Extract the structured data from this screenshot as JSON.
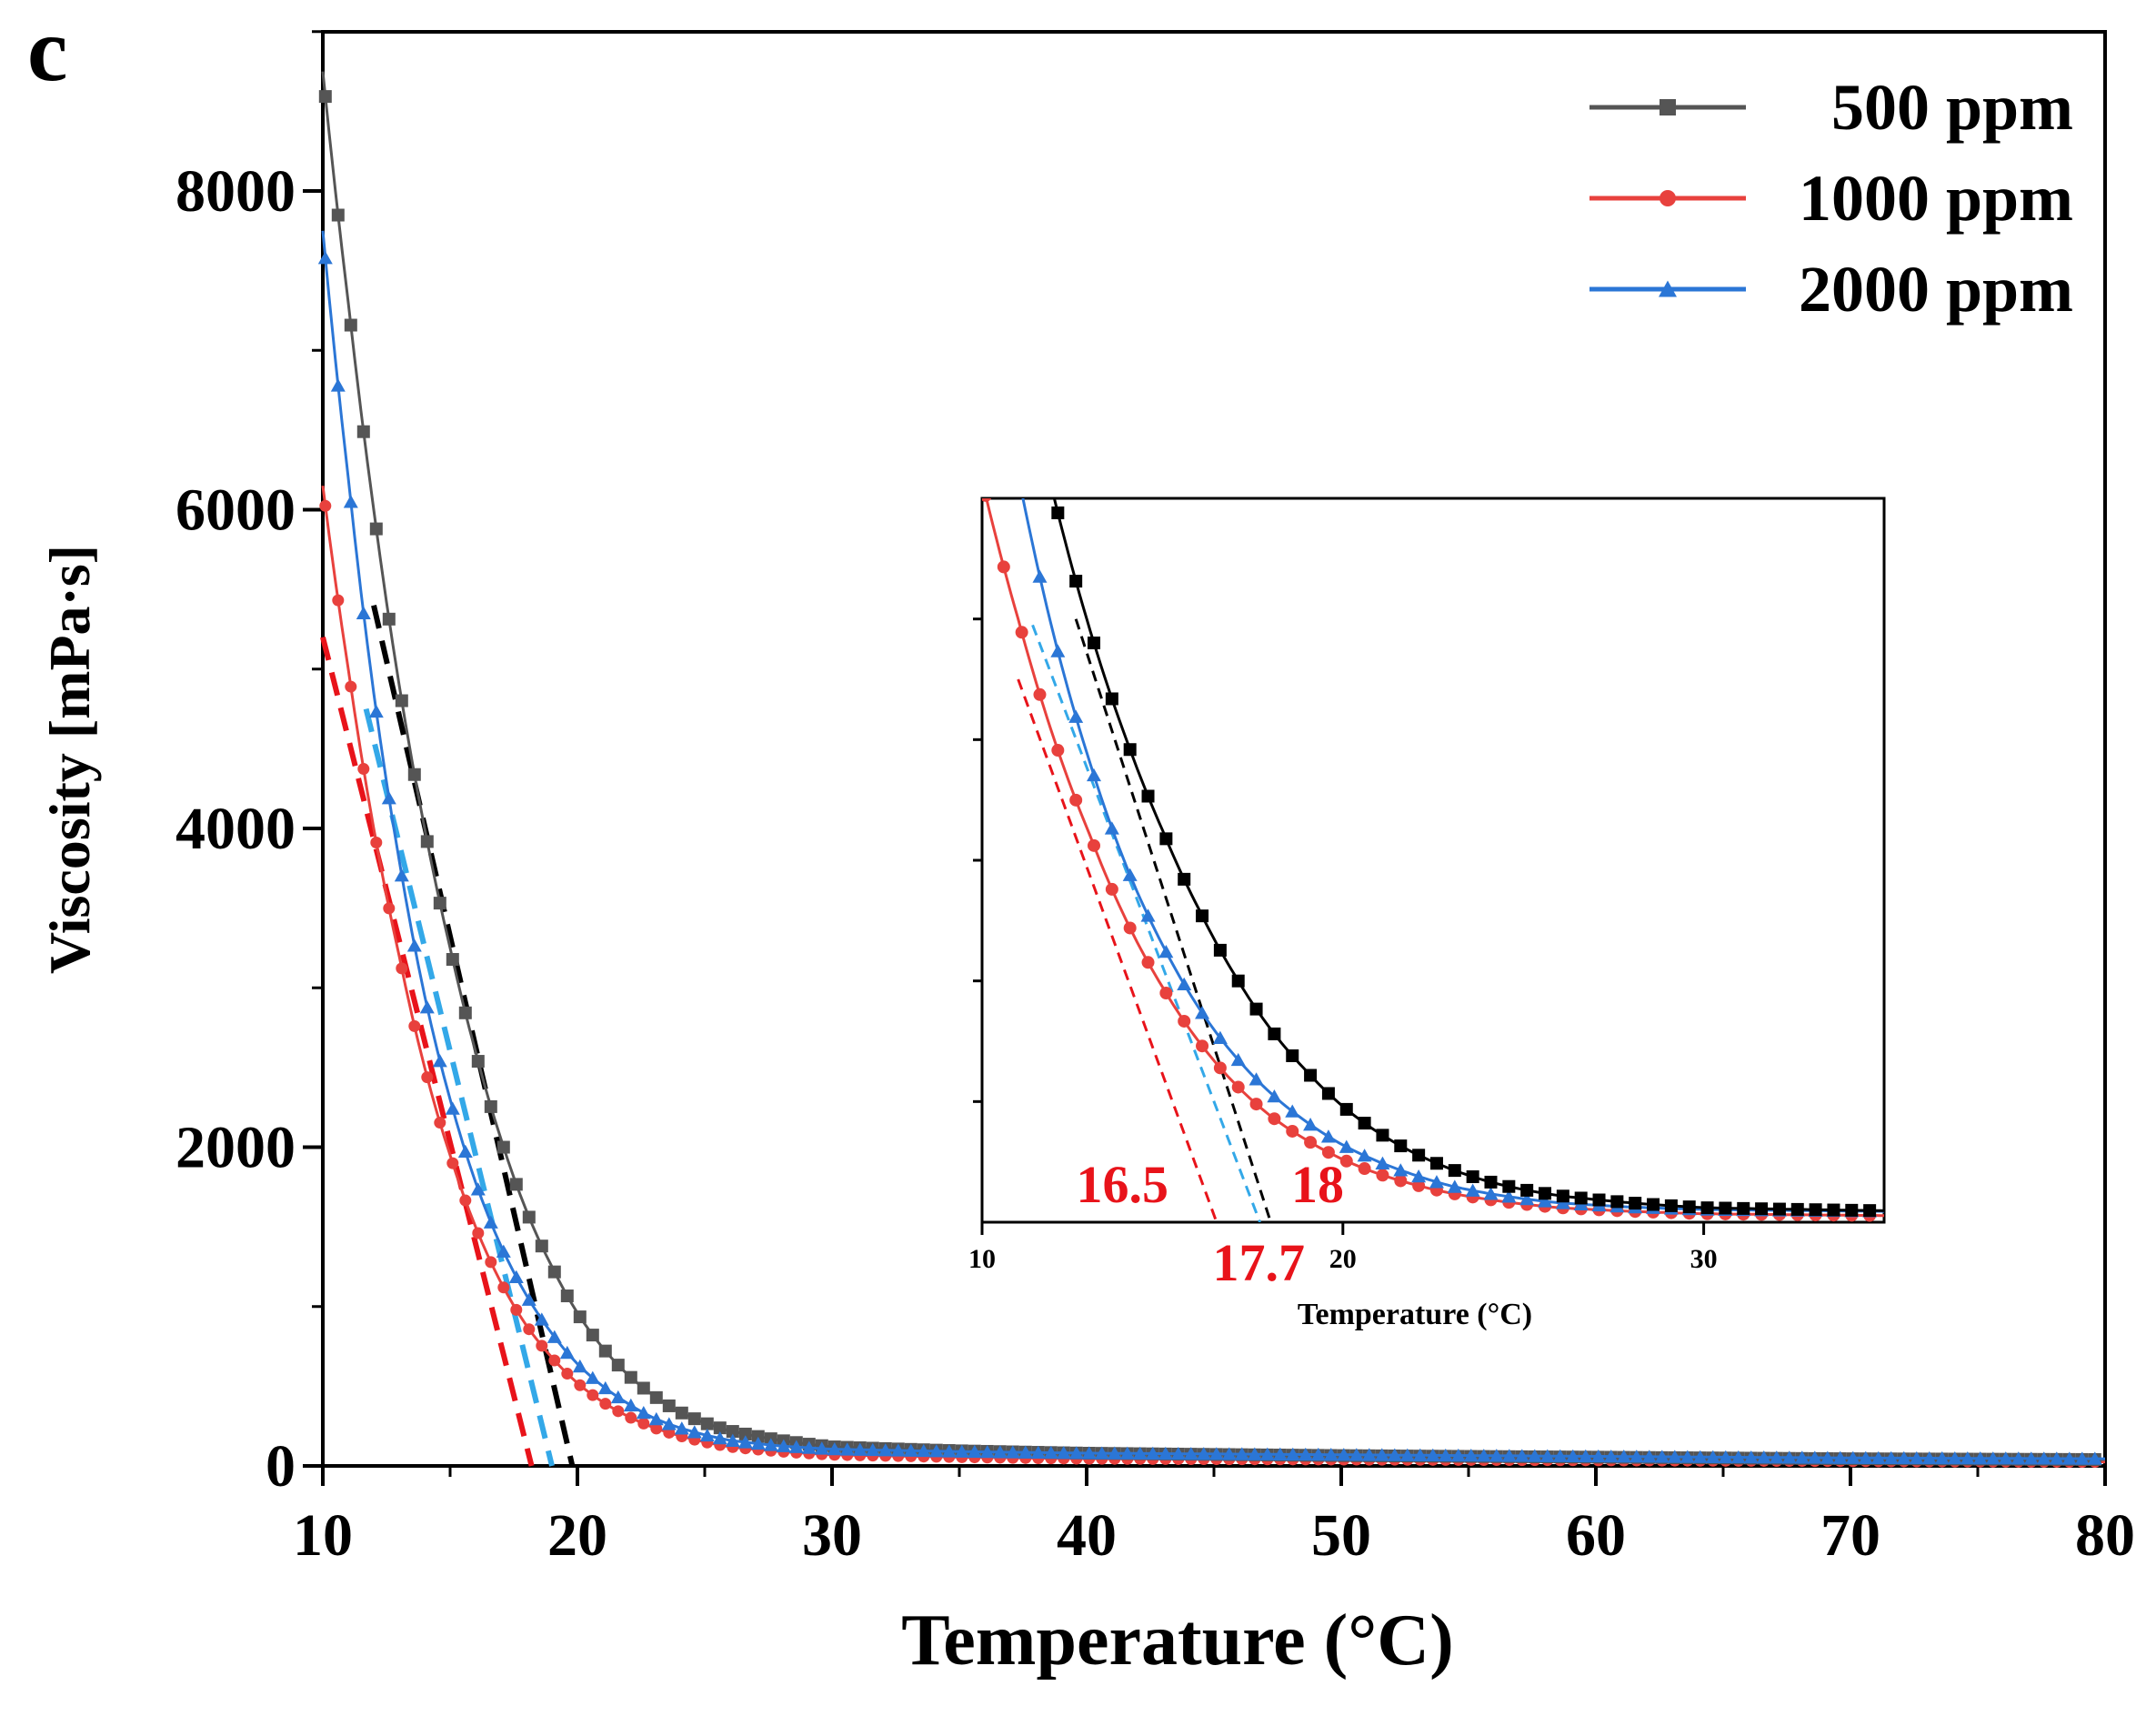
{
  "panel_label": "c",
  "chart_data": {
    "type": "line",
    "title": "",
    "xlabel": "Temperature (°C)",
    "ylabel": "Viscosity [mPa·s]",
    "xlim": [
      10,
      80
    ],
    "ylim": [
      0,
      9000
    ],
    "x_ticks": [
      10,
      20,
      30,
      40,
      50,
      60,
      70,
      80
    ],
    "x_tick_labels": [
      "10",
      "20",
      "30",
      "40",
      "50",
      "60",
      "70",
      "80"
    ],
    "y_ticks": [
      0,
      2000,
      4000,
      6000,
      8000
    ],
    "y_tick_labels": [
      "0",
      "2000",
      "4000",
      "6000",
      "8000"
    ],
    "grid": false,
    "legend_position": "top-right",
    "series": [
      {
        "name": "500 ppm",
        "color": "#555555",
        "marker": "square",
        "x": [
          10,
          11,
          12,
          13,
          14,
          15,
          16,
          17,
          18,
          19,
          20,
          21,
          22,
          23,
          24,
          25,
          26,
          28,
          30,
          35,
          40,
          50,
          60,
          70,
          80
        ],
        "values": [
          8750,
          7300,
          6000,
          4900,
          4000,
          3250,
          2600,
          2050,
          1600,
          1250,
          960,
          740,
          570,
          440,
          340,
          270,
          220,
          160,
          120,
          95,
          80,
          65,
          55,
          45,
          40
        ],
        "tangent": {
          "from": [
            12,
            5400
          ],
          "to": [
            19.8,
            0
          ]
        }
      },
      {
        "name": "1000 ppm",
        "color": "#e8413d",
        "marker": "circle",
        "x": [
          10,
          11,
          12,
          13,
          14,
          15,
          16,
          17,
          18,
          19,
          20,
          21,
          22,
          23,
          24,
          25,
          26,
          28,
          30,
          35,
          40,
          50,
          60,
          70,
          80
        ],
        "values": [
          6150,
          5000,
          4000,
          3200,
          2500,
          1950,
          1500,
          1150,
          880,
          680,
          520,
          400,
          310,
          240,
          190,
          150,
          120,
          90,
          70,
          55,
          45,
          40,
          35,
          30,
          25
        ],
        "tangent": {
          "from": [
            10,
            5200
          ],
          "to": [
            18.2,
            0
          ]
        }
      },
      {
        "name": "2000 ppm",
        "color": "#2b76d6",
        "marker": "triangle",
        "x": [
          10,
          11,
          12,
          13,
          14,
          15,
          16,
          17,
          18,
          19,
          20,
          21,
          22,
          23,
          24,
          25,
          26,
          28,
          30,
          35,
          40,
          50,
          60,
          70,
          80
        ],
        "values": [
          7750,
          6200,
          4850,
          3800,
          2950,
          2300,
          1780,
          1380,
          1070,
          830,
          640,
          500,
          390,
          300,
          240,
          195,
          160,
          125,
          105,
          90,
          80,
          70,
          60,
          50,
          45
        ],
        "tangent": {
          "from": [
            11.7,
            4750
          ],
          "to": [
            19,
            0
          ]
        }
      }
    ],
    "inset": {
      "xlabel": "Temperature (°C)",
      "xlim": [
        10,
        35
      ],
      "ylim": [
        0,
        6000
      ],
      "x_ticks": [
        10,
        20,
        30
      ],
      "x_tick_labels": [
        "10",
        "20",
        "30"
      ],
      "annotations": [
        {
          "text": "16.5",
          "color": "#e8131a"
        },
        {
          "text": "17.7",
          "color": "#e8131a"
        },
        {
          "text": "18",
          "color": "#e8131a"
        }
      ],
      "tangent_intercepts": [
        16.5,
        17.7,
        18
      ]
    }
  }
}
